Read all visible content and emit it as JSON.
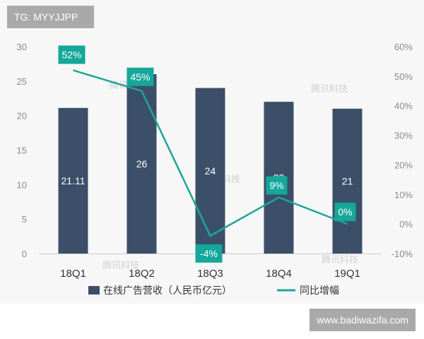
{
  "watermark_top_left": "TG: MYYJJPP",
  "watermark_bottom_right": "www.badiwazifa.com",
  "background_watermark": "腾讯科技",
  "colors": {
    "bar": "#3c4f69",
    "line": "#1fa59a",
    "label_box": "#14a79a",
    "axis_text": "#8a8a8a"
  },
  "chart_data": {
    "type": "bar",
    "categories": [
      "18Q1",
      "18Q2",
      "18Q3",
      "18Q4",
      "19Q1"
    ],
    "series": [
      {
        "name": "在线广告营收（人民币亿元）",
        "type": "bar",
        "axis": "left",
        "values": [
          21.11,
          26,
          24,
          22,
          21
        ],
        "labels": [
          "21.11",
          "26",
          "24",
          "22",
          "21"
        ]
      },
      {
        "name": "同比增幅",
        "type": "line",
        "axis": "right",
        "values": [
          52,
          45,
          -4,
          9,
          0
        ],
        "labels": [
          "52%",
          "45%",
          "-4%",
          "9%",
          "0%"
        ]
      }
    ],
    "y_left": {
      "min": 0,
      "max": 30,
      "ticks": [
        "0",
        "5",
        "10",
        "15",
        "20",
        "25",
        "30"
      ]
    },
    "y_right": {
      "min": -10,
      "max": 60,
      "ticks": [
        "-10%",
        "0%",
        "10%",
        "20%",
        "30%",
        "40%",
        "50%",
        "60%"
      ]
    },
    "legend_position": "bottom",
    "grid": false
  }
}
